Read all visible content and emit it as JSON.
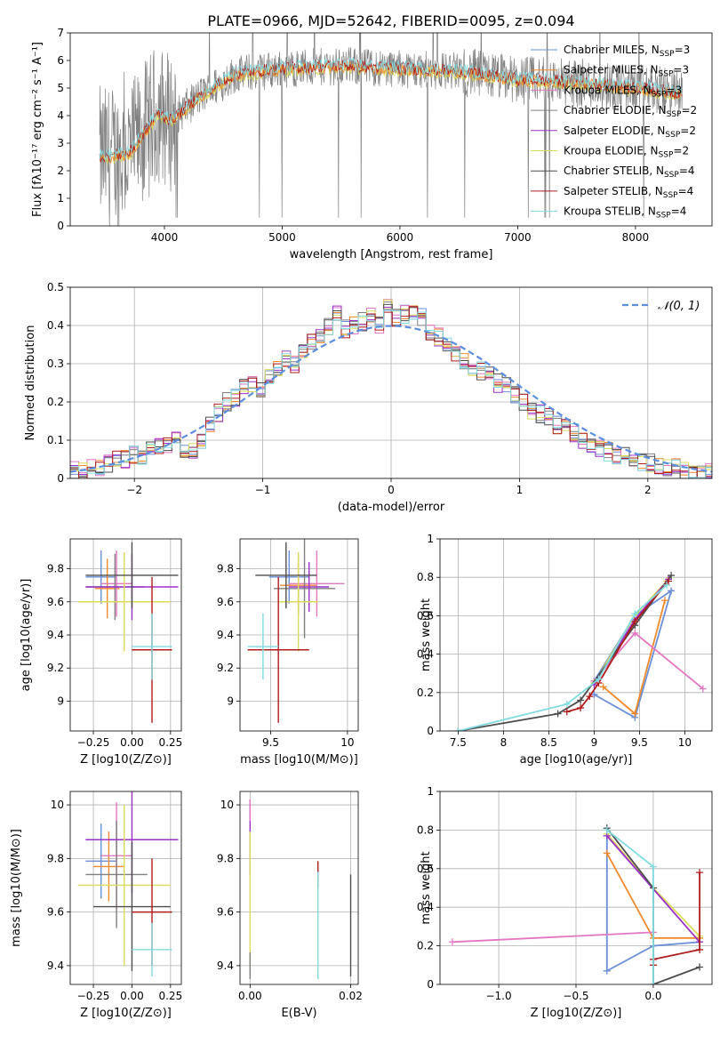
{
  "figure_title": "PLATE=0966, MJD=52642, FIBERID=0095, z=0.094",
  "series_styles": [
    {
      "name": "Chabrier MILES",
      "nssp": "3",
      "color": "#6a8fd8"
    },
    {
      "name": "Salpeter MILES",
      "nssp": "3",
      "color": "#f0892c"
    },
    {
      "name": "Kroupa MILES",
      "nssp": "3",
      "color": "#e377c2"
    },
    {
      "name": "Chabrier ELODIE",
      "nssp": "2",
      "color": "#7f7f7f"
    },
    {
      "name": "Salpeter ELODIE",
      "nssp": "2",
      "color": "#9b30c8"
    },
    {
      "name": "Kroupa ELODIE",
      "nssp": "2",
      "color": "#dbdb5a"
    },
    {
      "name": "Chabrier STELIB",
      "nssp": "4",
      "color": "#4d4d4d"
    },
    {
      "name": "Salpeter STELIB",
      "nssp": "4",
      "color": "#b01b1b"
    },
    {
      "name": "Kroupa STELIB",
      "nssp": "4",
      "color": "#80dbe0"
    }
  ],
  "chart_data": [
    {
      "type": "line",
      "id": "spectrum",
      "xlabel": "wavelength [Angstrom, rest frame]",
      "ylabel": "Flux [fλ10⁻¹⁷ erg cm⁻² s⁻¹ A⁻¹]",
      "xlim": [
        3200,
        8650
      ],
      "ylim": [
        0,
        7
      ],
      "xticks": [
        4000,
        5000,
        6000,
        7000,
        8000
      ],
      "yticks": [
        0,
        1,
        2,
        3,
        4,
        5,
        6,
        7
      ],
      "grid": false,
      "legend_position": "right",
      "data_range_x": [
        3450,
        8400
      ],
      "continuum_approx": [
        [
          3450,
          2.5
        ],
        [
          3700,
          2.6
        ],
        [
          3950,
          4.1
        ],
        [
          4050,
          3.8
        ],
        [
          4300,
          4.7
        ],
        [
          4600,
          5.5
        ],
        [
          5000,
          5.7
        ],
        [
          5500,
          5.8
        ],
        [
          6000,
          5.7
        ],
        [
          6500,
          5.6
        ],
        [
          7000,
          5.3
        ],
        [
          7500,
          5.2
        ],
        [
          8000,
          5.0
        ],
        [
          8400,
          4.8
        ]
      ]
    },
    {
      "type": "histogram",
      "id": "residuals",
      "xlabel": "(data-model)/error",
      "ylabel": "Normed distribution",
      "xlim": [
        -2.5,
        2.5
      ],
      "ylim": [
        0,
        0.5
      ],
      "xticks": [
        -2,
        -1,
        0,
        1,
        2
      ],
      "yticks": [
        0,
        0.1,
        0.2,
        0.3,
        0.4,
        0.5
      ],
      "grid": true,
      "legend": [
        {
          "label": "𝒩(0, 1)",
          "style": "dashed",
          "color": "#5b8ee0"
        }
      ],
      "legend_position": "upper right",
      "bin_width": 0.1,
      "bin_heights": [
        0.02,
        0.02,
        0.03,
        0.03,
        0.04,
        0.05,
        0.05,
        0.06,
        0.06,
        0.08,
        0.09,
        0.09,
        0.1,
        0.08,
        0.07,
        0.1,
        0.14,
        0.17,
        0.2,
        0.21,
        0.24,
        0.25,
        0.23,
        0.26,
        0.29,
        0.31,
        0.3,
        0.33,
        0.36,
        0.38,
        0.4,
        0.43,
        0.39,
        0.4,
        0.41,
        0.43,
        0.4,
        0.45,
        0.42,
        0.43,
        0.44,
        0.42,
        0.38,
        0.37,
        0.35,
        0.33,
        0.31,
        0.29,
        0.28,
        0.27,
        0.25,
        0.24,
        0.22,
        0.2,
        0.18,
        0.17,
        0.16,
        0.14,
        0.13,
        0.12,
        0.1,
        0.09,
        0.08,
        0.07,
        0.06,
        0.06,
        0.05,
        0.04,
        0.04,
        0.03,
        0.03,
        0.03,
        0.02,
        0.02,
        0.02,
        0.02
      ]
    },
    {
      "type": "errorbar",
      "id": "age_vs_Z",
      "xlabel": "Z [log10(Z/Z⊙)]",
      "ylabel": "age  [log10(age/yr)]",
      "xlim": [
        -0.4,
        0.32
      ],
      "ylim": [
        8.82,
        9.98
      ],
      "xticks": [
        -0.25,
        0.0,
        0.25
      ],
      "xticklabels": [
        "−0.25",
        "0.00",
        "0.25"
      ],
      "yticks": [
        9.0,
        9.2,
        9.4,
        9.6,
        9.8
      ],
      "grid": true,
      "points": [
        {
          "series": 0,
          "x": -0.2,
          "xerr": 0.1,
          "y": 9.75,
          "yerr": 0.16
        },
        {
          "series": 1,
          "x": -0.16,
          "xerr": 0.08,
          "y": 9.68,
          "yerr": 0.18
        },
        {
          "series": 2,
          "x": -0.1,
          "xerr": 0.1,
          "y": 9.71,
          "yerr": 0.2
        },
        {
          "series": 3,
          "x": -0.11,
          "xerr": 0.19,
          "y": 9.69,
          "yerr": 0.2
        },
        {
          "series": 4,
          "x": 0.0,
          "xerr": 0.3,
          "y": 9.69,
          "yerr": 0.2
        },
        {
          "series": 5,
          "x": -0.05,
          "xerr": 0.3,
          "y": 9.6,
          "yerr": 0.3
        },
        {
          "series": 6,
          "x": 0.0,
          "xerr": 0.3,
          "y": 9.76,
          "yerr": 0.2
        },
        {
          "series": 7,
          "x": 0.13,
          "xerr": 0.13,
          "y": 9.31,
          "yerr": 0.44
        },
        {
          "series": 8,
          "x": 0.13,
          "xerr": 0.13,
          "y": 9.33,
          "yerr": 0.2
        }
      ]
    },
    {
      "type": "errorbar",
      "id": "age_vs_mass",
      "xlabel": "mass [log10(M/M⊙)]",
      "xlim": [
        9.3,
        10.07
      ],
      "ylim": [
        8.82,
        9.98
      ],
      "xticks": [
        9.5,
        10.0
      ],
      "yticks": [
        9.0,
        9.2,
        9.4,
        9.6,
        9.8
      ],
      "grid": true,
      "points": [
        {
          "series": 0,
          "x": 9.62,
          "xerr": 0.13,
          "y": 9.75,
          "yerr": 0.16
        },
        {
          "series": 1,
          "x": 9.68,
          "xerr": 0.12,
          "y": 9.7,
          "yerr": 0.18
        },
        {
          "series": 2,
          "x": 9.8,
          "xerr": 0.18,
          "y": 9.71,
          "yerr": 0.2
        },
        {
          "series": 3,
          "x": 9.72,
          "xerr": 0.2,
          "y": 9.68,
          "yerr": 0.3
        },
        {
          "series": 4,
          "x": 9.75,
          "xerr": 0.13,
          "y": 9.69,
          "yerr": 0.15
        },
        {
          "series": 5,
          "x": 9.68,
          "xerr": 0.13,
          "y": 9.6,
          "yerr": 0.3
        },
        {
          "series": 6,
          "x": 9.6,
          "xerr": 0.2,
          "y": 9.76,
          "yerr": 0.2
        },
        {
          "series": 7,
          "x": 9.55,
          "xerr": 0.2,
          "y": 9.31,
          "yerr": 0.44
        },
        {
          "series": 8,
          "x": 9.45,
          "xerr": 0.1,
          "y": 9.33,
          "yerr": 0.2
        }
      ]
    },
    {
      "type": "line",
      "id": "massweight_vs_age",
      "xlabel": "age  [log10(age/yr)]",
      "ylabel": "mass weight",
      "xlim": [
        7.3,
        10.3
      ],
      "ylim": [
        0,
        1
      ],
      "xticks": [
        7.5,
        8.0,
        8.5,
        9.0,
        9.5,
        10.0
      ],
      "yticks": [
        0,
        0.2,
        0.4,
        0.6,
        0.8,
        1.0
      ],
      "grid": true,
      "series": [
        {
          "series": 0,
          "x": [
            9.0,
            9.45,
            9.85,
            9.45,
            9.0
          ],
          "y": [
            0.19,
            0.07,
            0.73,
            0.6,
            0.26
          ]
        },
        {
          "series": 1,
          "x": [
            9.1,
            9.45,
            9.78
          ],
          "y": [
            0.23,
            0.09,
            0.68
          ]
        },
        {
          "series": 2,
          "x": [
            9.0,
            9.45,
            10.2
          ],
          "y": [
            0.26,
            0.51,
            0.22
          ]
        },
        {
          "series": 5,
          "x": [
            9.0,
            9.45,
            9.8
          ],
          "y": [
            0.25,
            0.6,
            0.78
          ]
        },
        {
          "series": 4,
          "x": [
            9.0,
            9.45,
            9.82
          ],
          "y": [
            0.24,
            0.58,
            0.79
          ]
        },
        {
          "series": 6,
          "x": [
            7.5,
            8.6,
            8.85,
            9.45,
            9.85
          ],
          "y": [
            0.0,
            0.09,
            0.16,
            0.55,
            0.81
          ]
        },
        {
          "series": 7,
          "x": [
            8.7,
            8.85,
            8.95,
            9.05,
            9.45,
            9.82
          ],
          "y": [
            0.1,
            0.12,
            0.18,
            0.25,
            0.57,
            0.78
          ]
        },
        {
          "series": 8,
          "x": [
            7.5,
            8.7,
            9.05,
            9.45,
            9.8
          ],
          "y": [
            0.0,
            0.14,
            0.27,
            0.61,
            0.76
          ]
        }
      ]
    },
    {
      "type": "errorbar",
      "id": "mass_vs_Z",
      "xlabel": "Z [log10(Z/Z⊙)]",
      "ylabel": "mass [log10(M/M⊙)]",
      "xlim": [
        -0.4,
        0.32
      ],
      "ylim": [
        9.33,
        10.05
      ],
      "xticks": [
        -0.25,
        0.0,
        0.25
      ],
      "xticklabels": [
        "−0.25",
        "0.00",
        "0.25"
      ],
      "yticks": [
        9.4,
        9.6,
        9.8,
        10.0
      ],
      "grid": true,
      "points": [
        {
          "series": 0,
          "x": -0.2,
          "xerr": 0.1,
          "y": 9.79,
          "yerr": 0.14
        },
        {
          "series": 1,
          "x": -0.15,
          "xerr": 0.1,
          "y": 9.77,
          "yerr": 0.13
        },
        {
          "series": 2,
          "x": -0.1,
          "xerr": 0.1,
          "y": 9.81,
          "yerr": 0.2
        },
        {
          "series": 3,
          "x": -0.1,
          "xerr": 0.2,
          "y": 9.74,
          "yerr": 0.2
        },
        {
          "series": 4,
          "x": 0.0,
          "xerr": 0.3,
          "y": 9.87,
          "yerr": 0.2
        },
        {
          "series": 5,
          "x": -0.05,
          "xerr": 0.3,
          "y": 9.7,
          "yerr": 0.3
        },
        {
          "series": 6,
          "x": 0.0,
          "xerr": 0.25,
          "y": 9.62,
          "yerr": 0.24
        },
        {
          "series": 7,
          "x": 0.13,
          "xerr": 0.13,
          "y": 9.6,
          "yerr": 0.2
        },
        {
          "series": 8,
          "x": 0.13,
          "xerr": 0.13,
          "y": 9.46,
          "yerr": 0.1
        }
      ]
    },
    {
      "type": "errorbar",
      "id": "mass_vs_EBV",
      "xlabel": "E(B-V)",
      "xlim": [
        -0.002,
        0.0215
      ],
      "ylim": [
        9.33,
        10.05
      ],
      "xticks": [
        0.0,
        0.02
      ],
      "xticklabels": [
        "0.00",
        "0.02"
      ],
      "yticks": [
        9.4,
        9.6,
        9.8,
        10.0
      ],
      "grid": true,
      "points": [
        {
          "series": 4,
          "x": 0.0,
          "xerr": 0.0,
          "y": 9.88,
          "yerr": 0.14
        },
        {
          "series": 2,
          "x": 0.0,
          "xerr": 0.0,
          "y": 9.98,
          "yerr": 0.04
        },
        {
          "series": 5,
          "x": 0.0,
          "xerr": 0.0,
          "y": 9.65,
          "yerr": 0.25
        },
        {
          "series": 3,
          "x": 0.0,
          "xerr": 0.0,
          "y": 9.4,
          "yerr": 0.05
        },
        {
          "series": 7,
          "x": 0.0135,
          "xerr": 0.0,
          "y": 9.74,
          "yerr": 0.05
        },
        {
          "series": 8,
          "x": 0.0135,
          "xerr": 0.0,
          "y": 9.55,
          "yerr": 0.2
        },
        {
          "series": 6,
          "x": 0.02,
          "xerr": 0.0,
          "y": 9.55,
          "yerr": 0.19
        }
      ]
    },
    {
      "type": "line",
      "id": "massweight_vs_Z",
      "xlabel": "Z [log10(Z/Z⊙)]",
      "ylabel": "mass weight",
      "xlim": [
        -1.38,
        0.38
      ],
      "ylim": [
        0,
        1
      ],
      "xticks": [
        -1.0,
        -0.5,
        0.0
      ],
      "xticklabels": [
        "−1.0",
        "−0.5",
        "0.0"
      ],
      "yticks": [
        0,
        0.2,
        0.4,
        0.6,
        0.8,
        1.0
      ],
      "grid": true,
      "series": [
        {
          "series": 0,
          "x": [
            -0.3,
            -0.3,
            0.0,
            0.3
          ],
          "y": [
            0.77,
            0.07,
            0.2,
            0.22
          ]
        },
        {
          "series": 1,
          "x": [
            -0.3,
            0.0,
            0.3
          ],
          "y": [
            0.68,
            0.24,
            0.24
          ]
        },
        {
          "series": 2,
          "x": [
            -1.3,
            0.0
          ],
          "y": [
            0.22,
            0.27
          ]
        },
        {
          "series": 5,
          "x": [
            -0.3,
            0.0,
            0.3
          ],
          "y": [
            0.78,
            0.5,
            0.25
          ]
        },
        {
          "series": 4,
          "x": [
            -0.3,
            0.3
          ],
          "y": [
            0.77,
            0.22
          ]
        },
        {
          "series": 6,
          "x": [
            -0.3,
            0.0,
            0.0,
            0.3
          ],
          "y": [
            0.81,
            0.5,
            0.0,
            0.09
          ]
        },
        {
          "series": 7,
          "x": [
            0.0,
            0.0,
            0.3,
            0.3
          ],
          "y": [
            0.1,
            0.13,
            0.18,
            0.58
          ]
        },
        {
          "series": 8,
          "x": [
            -0.3,
            0.0,
            0.0
          ],
          "y": [
            0.8,
            0.61,
            0.0
          ]
        }
      ]
    }
  ]
}
